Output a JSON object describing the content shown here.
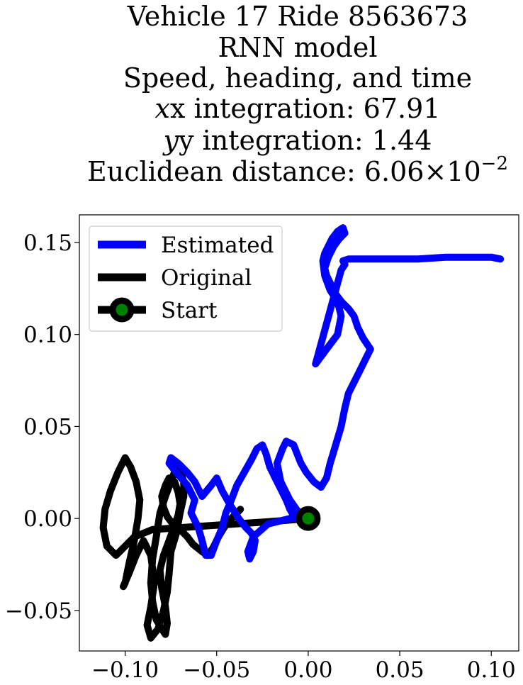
{
  "chart_data": {
    "type": "line",
    "title_lines": [
      "Vehicle 17 Ride 8563673",
      "RNN model",
      "Speed, heading, and time"
    ],
    "x_integration": {
      "label": "x integration: ",
      "value": "67.91"
    },
    "y_integration": {
      "label": "y integration: ",
      "value": "1.44"
    },
    "euclidean": {
      "label": "Euclidean distance: ",
      "mantissa": "6.06",
      "times": "×10",
      "exponent": "−2"
    },
    "xlim": [
      -0.125,
      0.115
    ],
    "ylim": [
      -0.072,
      0.165
    ],
    "x_ticks": [
      {
        "value": -0.1,
        "label": "−0.10"
      },
      {
        "value": -0.05,
        "label": "−0.05"
      },
      {
        "value": 0.0,
        "label": "0.00"
      },
      {
        "value": 0.05,
        "label": "0.05"
      },
      {
        "value": 0.1,
        "label": "0.10"
      }
    ],
    "y_ticks": [
      {
        "value": -0.05,
        "label": "−0.05"
      },
      {
        "value": 0.0,
        "label": "0.00"
      },
      {
        "value": 0.05,
        "label": "0.05"
      },
      {
        "value": 0.1,
        "label": "0.10"
      },
      {
        "value": 0.15,
        "label": "0.15"
      }
    ],
    "legend_position": "upper-left",
    "grid": false,
    "series": [
      {
        "name": "Estimated",
        "color": "#0000ff",
        "x": [
          0.0,
          -0.01,
          -0.022,
          -0.03,
          -0.033,
          -0.032,
          -0.03,
          -0.029,
          -0.031,
          -0.034,
          -0.038,
          -0.043,
          -0.047,
          -0.05,
          -0.053,
          -0.058,
          -0.062,
          -0.066,
          -0.071,
          -0.075,
          -0.076,
          -0.072,
          -0.066,
          -0.062,
          -0.064,
          -0.06,
          -0.058,
          -0.056,
          -0.053,
          -0.05,
          -0.047,
          -0.045,
          -0.042,
          -0.039,
          -0.035,
          -0.031,
          -0.028,
          -0.025,
          -0.023,
          -0.021,
          -0.018,
          -0.015,
          -0.012,
          -0.01,
          -0.007,
          -0.005,
          -0.01,
          -0.015,
          -0.017,
          -0.014,
          -0.012,
          -0.008,
          -0.006,
          -0.004,
          -0.001,
          0.003,
          0.007,
          0.01,
          0.012,
          0.015,
          0.018,
          0.02,
          0.022,
          0.025,
          0.028,
          0.031,
          0.034,
          0.03,
          0.027,
          0.025,
          0.022,
          0.018,
          0.015,
          0.012,
          0.01,
          0.009,
          0.011,
          0.014,
          0.017,
          0.02,
          0.019,
          0.016,
          0.013,
          0.011,
          0.009,
          0.008,
          0.009,
          0.012,
          0.016,
          0.018,
          0.016,
          0.01,
          0.004,
          0.018,
          0.02,
          0.019,
          0.022,
          0.03,
          0.045,
          0.06,
          0.075,
          0.09,
          0.1,
          0.105
        ],
        "y": [
          0.0,
          0.0,
          -0.003,
          -0.01,
          -0.018,
          -0.022,
          -0.018,
          -0.012,
          -0.008,
          -0.005,
          0.0,
          0.008,
          0.015,
          0.022,
          0.018,
          0.012,
          0.02,
          0.025,
          0.03,
          0.033,
          0.03,
          0.025,
          0.018,
          0.01,
          0.003,
          -0.005,
          -0.012,
          -0.02,
          -0.02,
          -0.012,
          -0.005,
          0.003,
          0.01,
          0.018,
          0.025,
          0.032,
          0.038,
          0.04,
          0.035,
          0.028,
          0.022,
          0.016,
          0.01,
          0.005,
          0.0,
          0.003,
          0.01,
          0.02,
          0.03,
          0.038,
          0.042,
          0.04,
          0.035,
          0.03,
          0.025,
          0.02,
          0.017,
          0.022,
          0.03,
          0.04,
          0.05,
          0.06,
          0.068,
          0.074,
          0.08,
          0.086,
          0.092,
          0.098,
          0.104,
          0.11,
          0.114,
          0.118,
          0.122,
          0.128,
          0.132,
          0.136,
          0.142,
          0.148,
          0.152,
          0.155,
          0.158,
          0.156,
          0.152,
          0.148,
          0.144,
          0.14,
          0.132,
          0.124,
          0.118,
          0.11,
          0.1,
          0.092,
          0.084,
          0.135,
          0.138,
          0.14,
          0.141,
          0.141,
          0.141,
          0.141,
          0.142,
          0.142,
          0.142,
          0.141
        ]
      },
      {
        "name": "Original",
        "color": "#000000",
        "x": [
          0.0,
          -0.012,
          -0.025,
          -0.04,
          -0.055,
          -0.07,
          -0.085,
          -0.095,
          -0.1,
          -0.105,
          -0.11,
          -0.112,
          -0.111,
          -0.108,
          -0.104,
          -0.1,
          -0.097,
          -0.094,
          -0.092,
          -0.093,
          -0.095,
          -0.098,
          -0.1,
          -0.101,
          -0.098,
          -0.094,
          -0.09,
          -0.086,
          -0.084,
          -0.086,
          -0.088,
          -0.086,
          -0.082,
          -0.079,
          -0.077,
          -0.076,
          -0.075,
          -0.072,
          -0.07,
          -0.068,
          -0.068,
          -0.07,
          -0.072,
          -0.075,
          -0.078,
          -0.081,
          -0.083,
          -0.085,
          -0.086,
          -0.085,
          -0.083,
          -0.08,
          -0.078,
          -0.077,
          -0.078,
          -0.08,
          -0.081,
          -0.079,
          -0.076,
          -0.073,
          -0.071,
          -0.07,
          -0.071,
          -0.073,
          -0.076,
          -0.078,
          -0.08,
          -0.079,
          -0.077,
          -0.074,
          -0.07,
          -0.066,
          -0.063,
          -0.058,
          -0.055,
          -0.052,
          -0.049,
          -0.046,
          -0.043,
          -0.04,
          -0.038,
          -0.037
        ],
        "y": [
          0.0,
          -0.001,
          -0.002,
          -0.003,
          -0.004,
          -0.005,
          -0.006,
          -0.01,
          -0.015,
          -0.02,
          -0.015,
          -0.005,
          0.005,
          0.015,
          0.025,
          0.033,
          0.028,
          0.02,
          0.01,
          0.0,
          -0.012,
          -0.025,
          -0.035,
          -0.037,
          -0.03,
          -0.02,
          -0.012,
          -0.02,
          -0.035,
          -0.048,
          -0.058,
          -0.065,
          -0.06,
          -0.05,
          -0.04,
          -0.03,
          -0.018,
          -0.008,
          0.003,
          0.012,
          0.02,
          0.026,
          0.028,
          0.02,
          0.012,
          0.003,
          -0.01,
          -0.022,
          -0.035,
          -0.045,
          -0.055,
          -0.06,
          -0.063,
          -0.057,
          -0.048,
          -0.038,
          -0.028,
          -0.02,
          -0.012,
          -0.004,
          0.002,
          0.008,
          0.014,
          0.02,
          0.022,
          0.018,
          0.012,
          0.006,
          0.001,
          -0.003,
          -0.006,
          -0.01,
          -0.014,
          -0.018,
          -0.02,
          -0.016,
          -0.01,
          -0.005,
          -0.001,
          0.002,
          0.004,
          0.005
        ]
      }
    ],
    "start_point": {
      "name": "Start",
      "x": 0.0,
      "y": 0.0,
      "marker_fill": "#008000",
      "marker_edge": "#000000"
    },
    "legend": [
      {
        "label": "Estimated",
        "color": "#0000ff",
        "kind": "line"
      },
      {
        "label": "Original",
        "color": "#000000",
        "kind": "line"
      },
      {
        "label": "Start",
        "color": "#000000",
        "kind": "marker",
        "marker_fill": "#008000"
      }
    ]
  }
}
